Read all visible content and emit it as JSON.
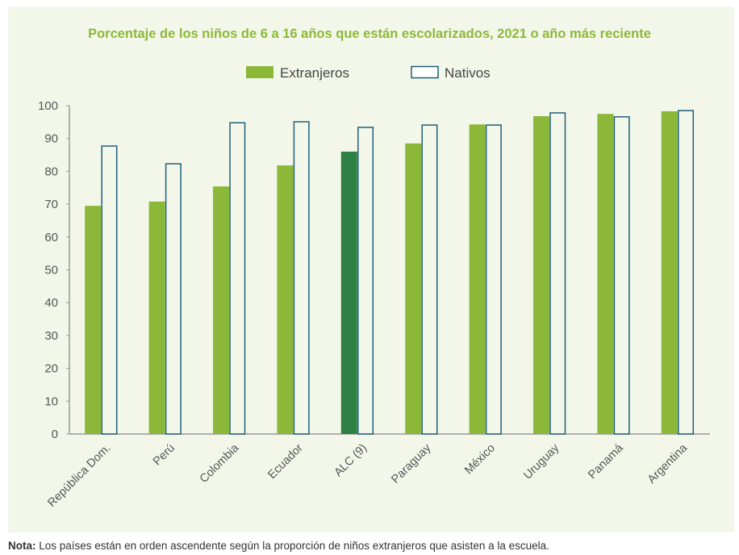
{
  "chart_data": {
    "type": "bar",
    "title": "Porcentaje de los niños de 6 a 16 años que están escolarizados, 2021 o año más reciente",
    "categories": [
      "República Dom.",
      "Perú",
      "Colombia",
      "Ecuador",
      "ALC (9)",
      "Paraguay",
      "México",
      "Uruguay",
      "Panamá",
      "Argentina"
    ],
    "series": [
      {
        "name": "Extranjeros",
        "values": [
          69.5,
          70.8,
          75.4,
          81.8,
          86.0,
          88.5,
          94.3,
          96.8,
          97.5,
          98.3
        ],
        "color": "#8cb83a",
        "highlight_color": "#2e8045",
        "highlight_category": "ALC (9)"
      },
      {
        "name": "Nativos",
        "values": [
          87.7,
          82.3,
          94.8,
          95.1,
          93.4,
          94.1,
          94.1,
          97.8,
          96.6,
          98.5
        ],
        "fill": "#f3f7ea",
        "stroke": "#1f5f7a"
      }
    ],
    "yticks": [
      0,
      10,
      20,
      30,
      40,
      50,
      60,
      70,
      80,
      90,
      100
    ],
    "ylim": [
      0,
      100
    ],
    "grid": false,
    "legend": "top-center"
  },
  "note": {
    "label": "Nota:",
    "text": " Los países están en orden ascendente según la proporción de niños extranjeros que asisten a la escuela."
  }
}
